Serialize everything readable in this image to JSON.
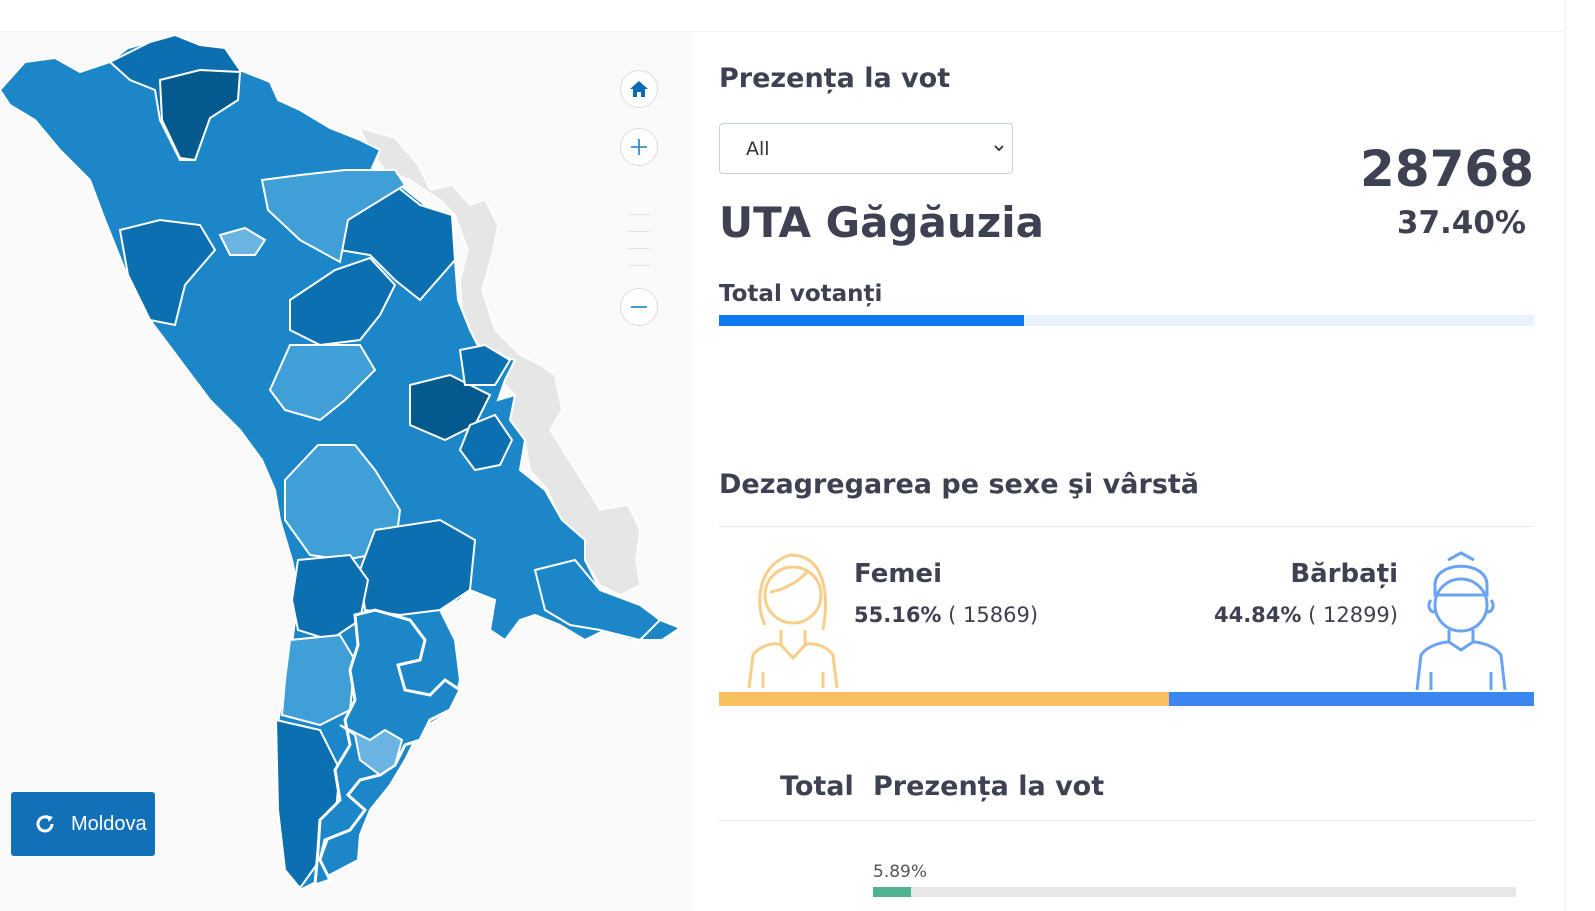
{
  "map": {
    "reset_button_label": "Moldova",
    "colors": {
      "darkest": "#045a8d",
      "dark": "#0b6fb0",
      "mid": "#1b87c9",
      "light": "#3f9fd6",
      "lighter": "#6ab4e3",
      "transnistria": "#e6e6e6",
      "border": "#ffffff"
    }
  },
  "turnout": {
    "heading": "Prezența la vot",
    "filter_selected": "All",
    "region_name": "UTA Găgăuzia",
    "voters_count": "28768",
    "voters_percent": "37.40%",
    "total_label": "Total votanți",
    "total_fill": 0.374,
    "bar_color": "#0d7af0",
    "track_color": "#eaf2fb"
  },
  "gender": {
    "heading": "Dezagregarea pe sexe şi vârstă",
    "female_label": "Femei",
    "female_percent": "55.16%",
    "female_count": "( 15869)",
    "male_label": "Bărbați",
    "male_percent": "44.84%",
    "male_count": "( 12899)",
    "female_fill": 0.5516,
    "female_color": "#f7bf5e",
    "male_color": "#3d86ef"
  },
  "age_table": {
    "col_total": "Total",
    "col_turnout": "Prezența la vot",
    "first_row_percent": "5.89%",
    "first_row_fill": 0.0589
  }
}
